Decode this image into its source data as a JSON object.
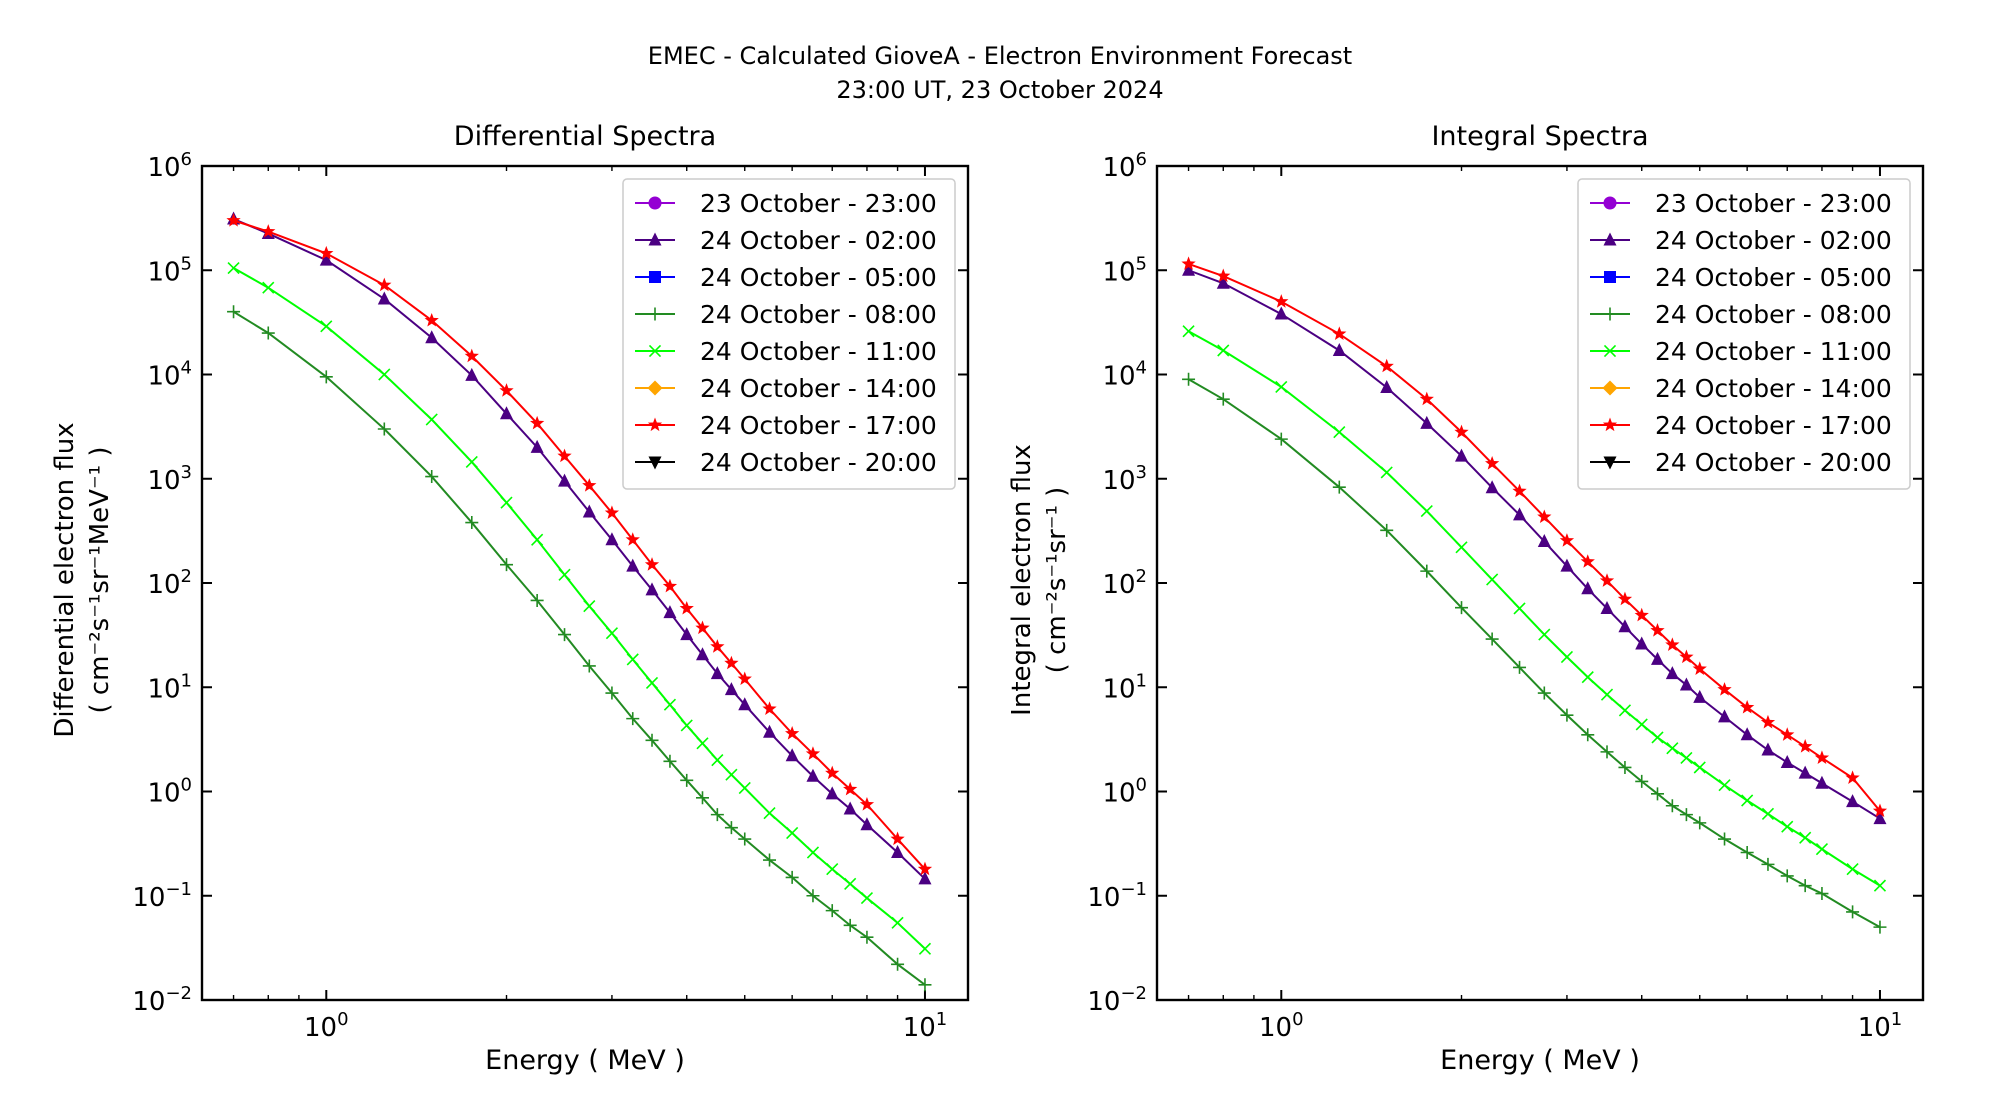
{
  "figure": {
    "title_line1": "EMEC - Calculated GioveA - Electron Environment Forecast",
    "title_line2": "23:00 UT, 23 October 2024"
  },
  "legend_entries": [
    {
      "name": "23 October - 23:00",
      "color": "#9400d3",
      "marker": "circle"
    },
    {
      "name": "24 October - 02:00",
      "color": "#4b0082",
      "marker": "triangle-up"
    },
    {
      "name": "24 October - 05:00",
      "color": "#0000ff",
      "marker": "square"
    },
    {
      "name": "24 October - 08:00",
      "color": "#228b22",
      "marker": "plus"
    },
    {
      "name": "24 October - 11:00",
      "color": "#00ff00",
      "marker": "x"
    },
    {
      "name": "24 October - 14:00",
      "color": "#ffa500",
      "marker": "diamond"
    },
    {
      "name": "24 October - 17:00",
      "color": "#ff0000",
      "marker": "star"
    },
    {
      "name": "24 October - 20:00",
      "color": "#000000",
      "marker": "triangle-down"
    }
  ],
  "chart_data": [
    {
      "type": "line",
      "title": "Differential Spectra",
      "xlabel": "Energy ( MeV )",
      "ylabel_line1": "Differential electron flux",
      "ylabel_line2": "( cm⁻²s⁻¹sr⁻¹MeV⁻¹ )",
      "xscale": "log",
      "yscale": "log",
      "xlim": [
        0.62,
        11.8
      ],
      "ylim": [
        0.01,
        1000000
      ],
      "x_ticks": [
        {
          "value": 1,
          "label": "10⁰"
        },
        {
          "value": 10,
          "label": "10¹"
        }
      ],
      "y_ticks": [
        {
          "value": 0.01,
          "label": "10⁻²"
        },
        {
          "value": 0.1,
          "label": "10⁻¹"
        },
        {
          "value": 1,
          "label": "10⁰"
        },
        {
          "value": 10,
          "label": "10¹"
        },
        {
          "value": 100,
          "label": "10²"
        },
        {
          "value": 1000,
          "label": "10³"
        },
        {
          "value": 10000,
          "label": "10⁴"
        },
        {
          "value": 100000,
          "label": "10⁵"
        },
        {
          "value": 1000000,
          "label": "10⁶"
        }
      ],
      "legend_position": "upper right",
      "grid": false,
      "x": [
        0.7,
        0.8,
        1.0,
        1.25,
        1.5,
        1.75,
        2.0,
        2.25,
        2.5,
        2.75,
        3.0,
        3.25,
        3.5,
        3.75,
        4.0,
        4.25,
        4.5,
        4.75,
        5.0,
        5.5,
        6.0,
        6.5,
        7.0,
        7.5,
        8.0,
        9.0,
        10.0
      ],
      "series": [
        {
          "name": "24 October - 08:00",
          "values": [
            40000,
            25000,
            9500,
            3000,
            1050,
            380,
            150,
            68,
            32,
            16,
            8.8,
            5.0,
            3.1,
            1.95,
            1.28,
            0.87,
            0.6,
            0.45,
            0.35,
            0.22,
            0.15,
            0.1,
            0.072,
            0.052,
            0.04,
            0.022,
            0.014
          ]
        },
        {
          "name": "24 October - 11:00",
          "values": [
            105000,
            68000,
            29000,
            10000,
            3700,
            1450,
            590,
            260,
            120,
            60,
            33,
            18.5,
            11,
            6.8,
            4.3,
            2.9,
            2.0,
            1.45,
            1.08,
            0.62,
            0.4,
            0.26,
            0.18,
            0.13,
            0.095,
            0.055,
            0.031
          ]
        },
        {
          "name": "24 October - 02:00",
          "values": [
            310000,
            225000,
            125000,
            53000,
            22500,
            9800,
            4200,
            2000,
            950,
            480,
            260,
            145,
            86,
            52,
            32,
            20.5,
            13.5,
            9.5,
            6.8,
            3.7,
            2.2,
            1.4,
            0.95,
            0.68,
            0.48,
            0.26,
            0.145
          ]
        },
        {
          "name": "24 October - 17:00",
          "values": [
            300000,
            235000,
            145000,
            72000,
            33000,
            15000,
            7000,
            3400,
            1650,
            860,
            470,
            260,
            150,
            93,
            57,
            37,
            24.5,
            17,
            12,
            6.2,
            3.6,
            2.3,
            1.5,
            1.05,
            0.75,
            0.35,
            0.18
          ]
        }
      ]
    },
    {
      "type": "line",
      "title": "Integral Spectra",
      "xlabel": "Energy ( MeV )",
      "ylabel_line1": "Integral electron flux",
      "ylabel_line2": "( cm⁻²s⁻¹sr⁻¹ )",
      "xscale": "log",
      "yscale": "log",
      "xlim": [
        0.62,
        11.8
      ],
      "ylim": [
        0.01,
        1000000
      ],
      "x_ticks": [
        {
          "value": 1,
          "label": "10⁰"
        },
        {
          "value": 10,
          "label": "10¹"
        }
      ],
      "y_ticks": [
        {
          "value": 0.01,
          "label": "10⁻²"
        },
        {
          "value": 0.1,
          "label": "10⁻¹"
        },
        {
          "value": 1,
          "label": "10⁰"
        },
        {
          "value": 10,
          "label": "10¹"
        },
        {
          "value": 100,
          "label": "10²"
        },
        {
          "value": 1000,
          "label": "10³"
        },
        {
          "value": 10000,
          "label": "10⁴"
        },
        {
          "value": 100000,
          "label": "10⁵"
        },
        {
          "value": 1000000,
          "label": "10⁶"
        }
      ],
      "legend_position": "upper right",
      "grid": false,
      "x": [
        0.7,
        0.8,
        1.0,
        1.25,
        1.5,
        1.75,
        2.0,
        2.25,
        2.5,
        2.75,
        3.0,
        3.25,
        3.5,
        3.75,
        4.0,
        4.25,
        4.5,
        4.75,
        5.0,
        5.5,
        6.0,
        6.5,
        7.0,
        7.5,
        8.0,
        9.0,
        10.0
      ],
      "series": [
        {
          "name": "24 October - 08:00",
          "values": [
            9000,
            5800,
            2400,
            830,
            320,
            130,
            58,
            29,
            15.5,
            8.8,
            5.4,
            3.5,
            2.4,
            1.7,
            1.25,
            0.95,
            0.73,
            0.6,
            0.5,
            0.35,
            0.26,
            0.2,
            0.155,
            0.125,
            0.105,
            0.07,
            0.05
          ]
        },
        {
          "name": "24 October - 11:00",
          "values": [
            26000,
            17000,
            7600,
            2800,
            1150,
            490,
            220,
            108,
            57,
            32,
            19.5,
            12.5,
            8.5,
            6.0,
            4.4,
            3.3,
            2.6,
            2.1,
            1.7,
            1.15,
            0.82,
            0.61,
            0.46,
            0.36,
            0.28,
            0.18,
            0.125
          ]
        },
        {
          "name": "24 October - 02:00",
          "values": [
            100000,
            75000,
            38000,
            17000,
            7500,
            3400,
            1650,
            820,
            450,
            250,
            145,
            88,
            57,
            38,
            26,
            18.5,
            13.5,
            10.5,
            8.0,
            5.2,
            3.5,
            2.5,
            1.9,
            1.5,
            1.2,
            0.8,
            0.55
          ]
        },
        {
          "name": "24 October - 17:00",
          "values": [
            115000,
            88000,
            50000,
            24500,
            12000,
            5800,
            2800,
            1400,
            760,
            430,
            255,
            160,
            105,
            70,
            49,
            35,
            25.5,
            19.5,
            15,
            9.5,
            6.4,
            4.6,
            3.5,
            2.7,
            2.1,
            1.35,
            0.65
          ]
        }
      ]
    }
  ]
}
